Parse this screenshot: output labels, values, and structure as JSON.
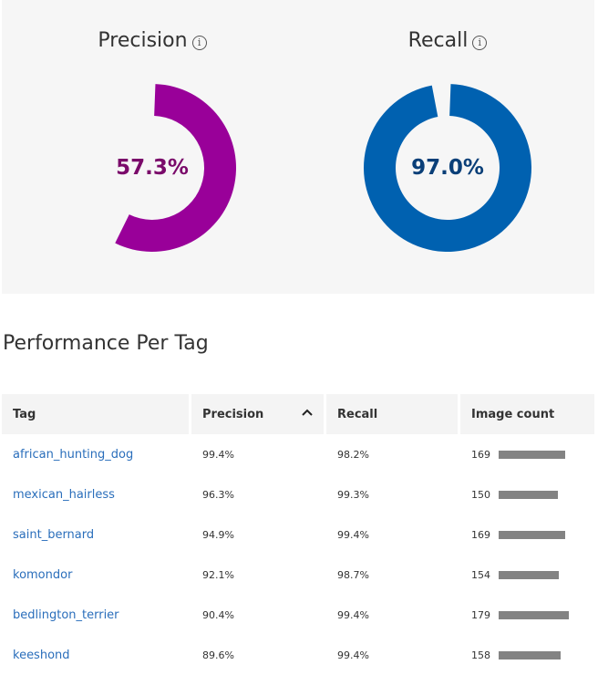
{
  "summary": {
    "precision": {
      "title": "Precision",
      "value_text": "57.3%",
      "value": 0.573,
      "color": "#990099"
    },
    "recall": {
      "title": "Recall",
      "value_text": "97.0%",
      "value": 0.97,
      "color": "#0061b0"
    },
    "info_icon": "i"
  },
  "section_title": "Performance Per Tag",
  "table": {
    "headers": {
      "tag": "Tag",
      "precision": "Precision",
      "recall": "Recall",
      "image_count": "Image count"
    },
    "sort_icon": "chevron-up-icon",
    "rows": [
      {
        "tag": "african_hunting_dog",
        "precision": "99.4%",
        "recall": "98.2%",
        "count": "169",
        "count_value": 169
      },
      {
        "tag": "mexican_hairless",
        "precision": "96.3%",
        "recall": "99.3%",
        "count": "150",
        "count_value": 150
      },
      {
        "tag": "saint_bernard",
        "precision": "94.9%",
        "recall": "99.4%",
        "count": "169",
        "count_value": 169
      },
      {
        "tag": "komondor",
        "precision": "92.1%",
        "recall": "98.7%",
        "count": "154",
        "count_value": 154
      },
      {
        "tag": "bedlington_terrier",
        "precision": "90.4%",
        "recall": "99.4%",
        "count": "179",
        "count_value": 179
      },
      {
        "tag": "keeshond",
        "precision": "89.6%",
        "recall": "99.4%",
        "count": "158",
        "count_value": 158
      }
    ]
  }
}
